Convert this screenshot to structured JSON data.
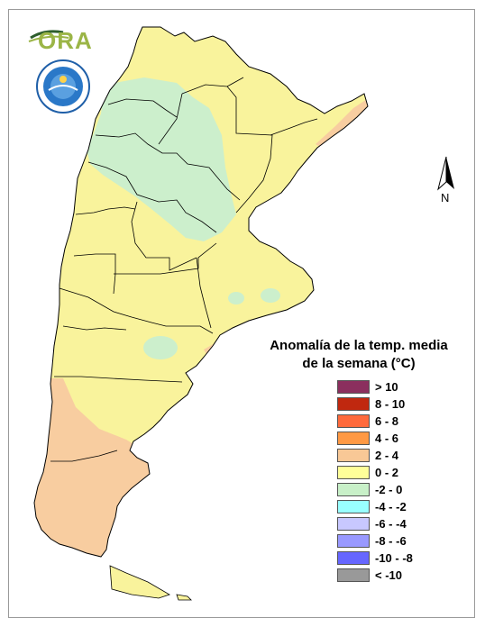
{
  "logo": {
    "text": "ORA"
  },
  "compass": {
    "label": "N"
  },
  "legend": {
    "title_line1": "Anomalía de la temp. media",
    "title_line2": "de la semana (°C)",
    "items": [
      {
        "label": "> 10",
        "color": "#8b2f5e"
      },
      {
        "label": "8 - 10",
        "color": "#c0280f"
      },
      {
        "label": "6 - 8",
        "color": "#ff6a3c"
      },
      {
        "label": "4 - 6",
        "color": "#ff9944"
      },
      {
        "label": "2 - 4",
        "color": "#f8c896"
      },
      {
        "label": "0 - 2",
        "color": "#ffff99"
      },
      {
        "label": "-2 - 0",
        "color": "#c8f0c8"
      },
      {
        "label": "-4 - -2",
        "color": "#99ffff"
      },
      {
        "label": "-6 - -4",
        "color": "#c8c8ff"
      },
      {
        "label": "-8 - -6",
        "color": "#9999ff"
      },
      {
        "label": "-10 - -8",
        "color": "#6666ff"
      },
      {
        "label": "< -10",
        "color": "#999999"
      }
    ]
  },
  "map_colors": {
    "warm": "#f8cda0",
    "mild": "#f9f39c",
    "cool": "#ccefcc",
    "border": "#000000"
  }
}
